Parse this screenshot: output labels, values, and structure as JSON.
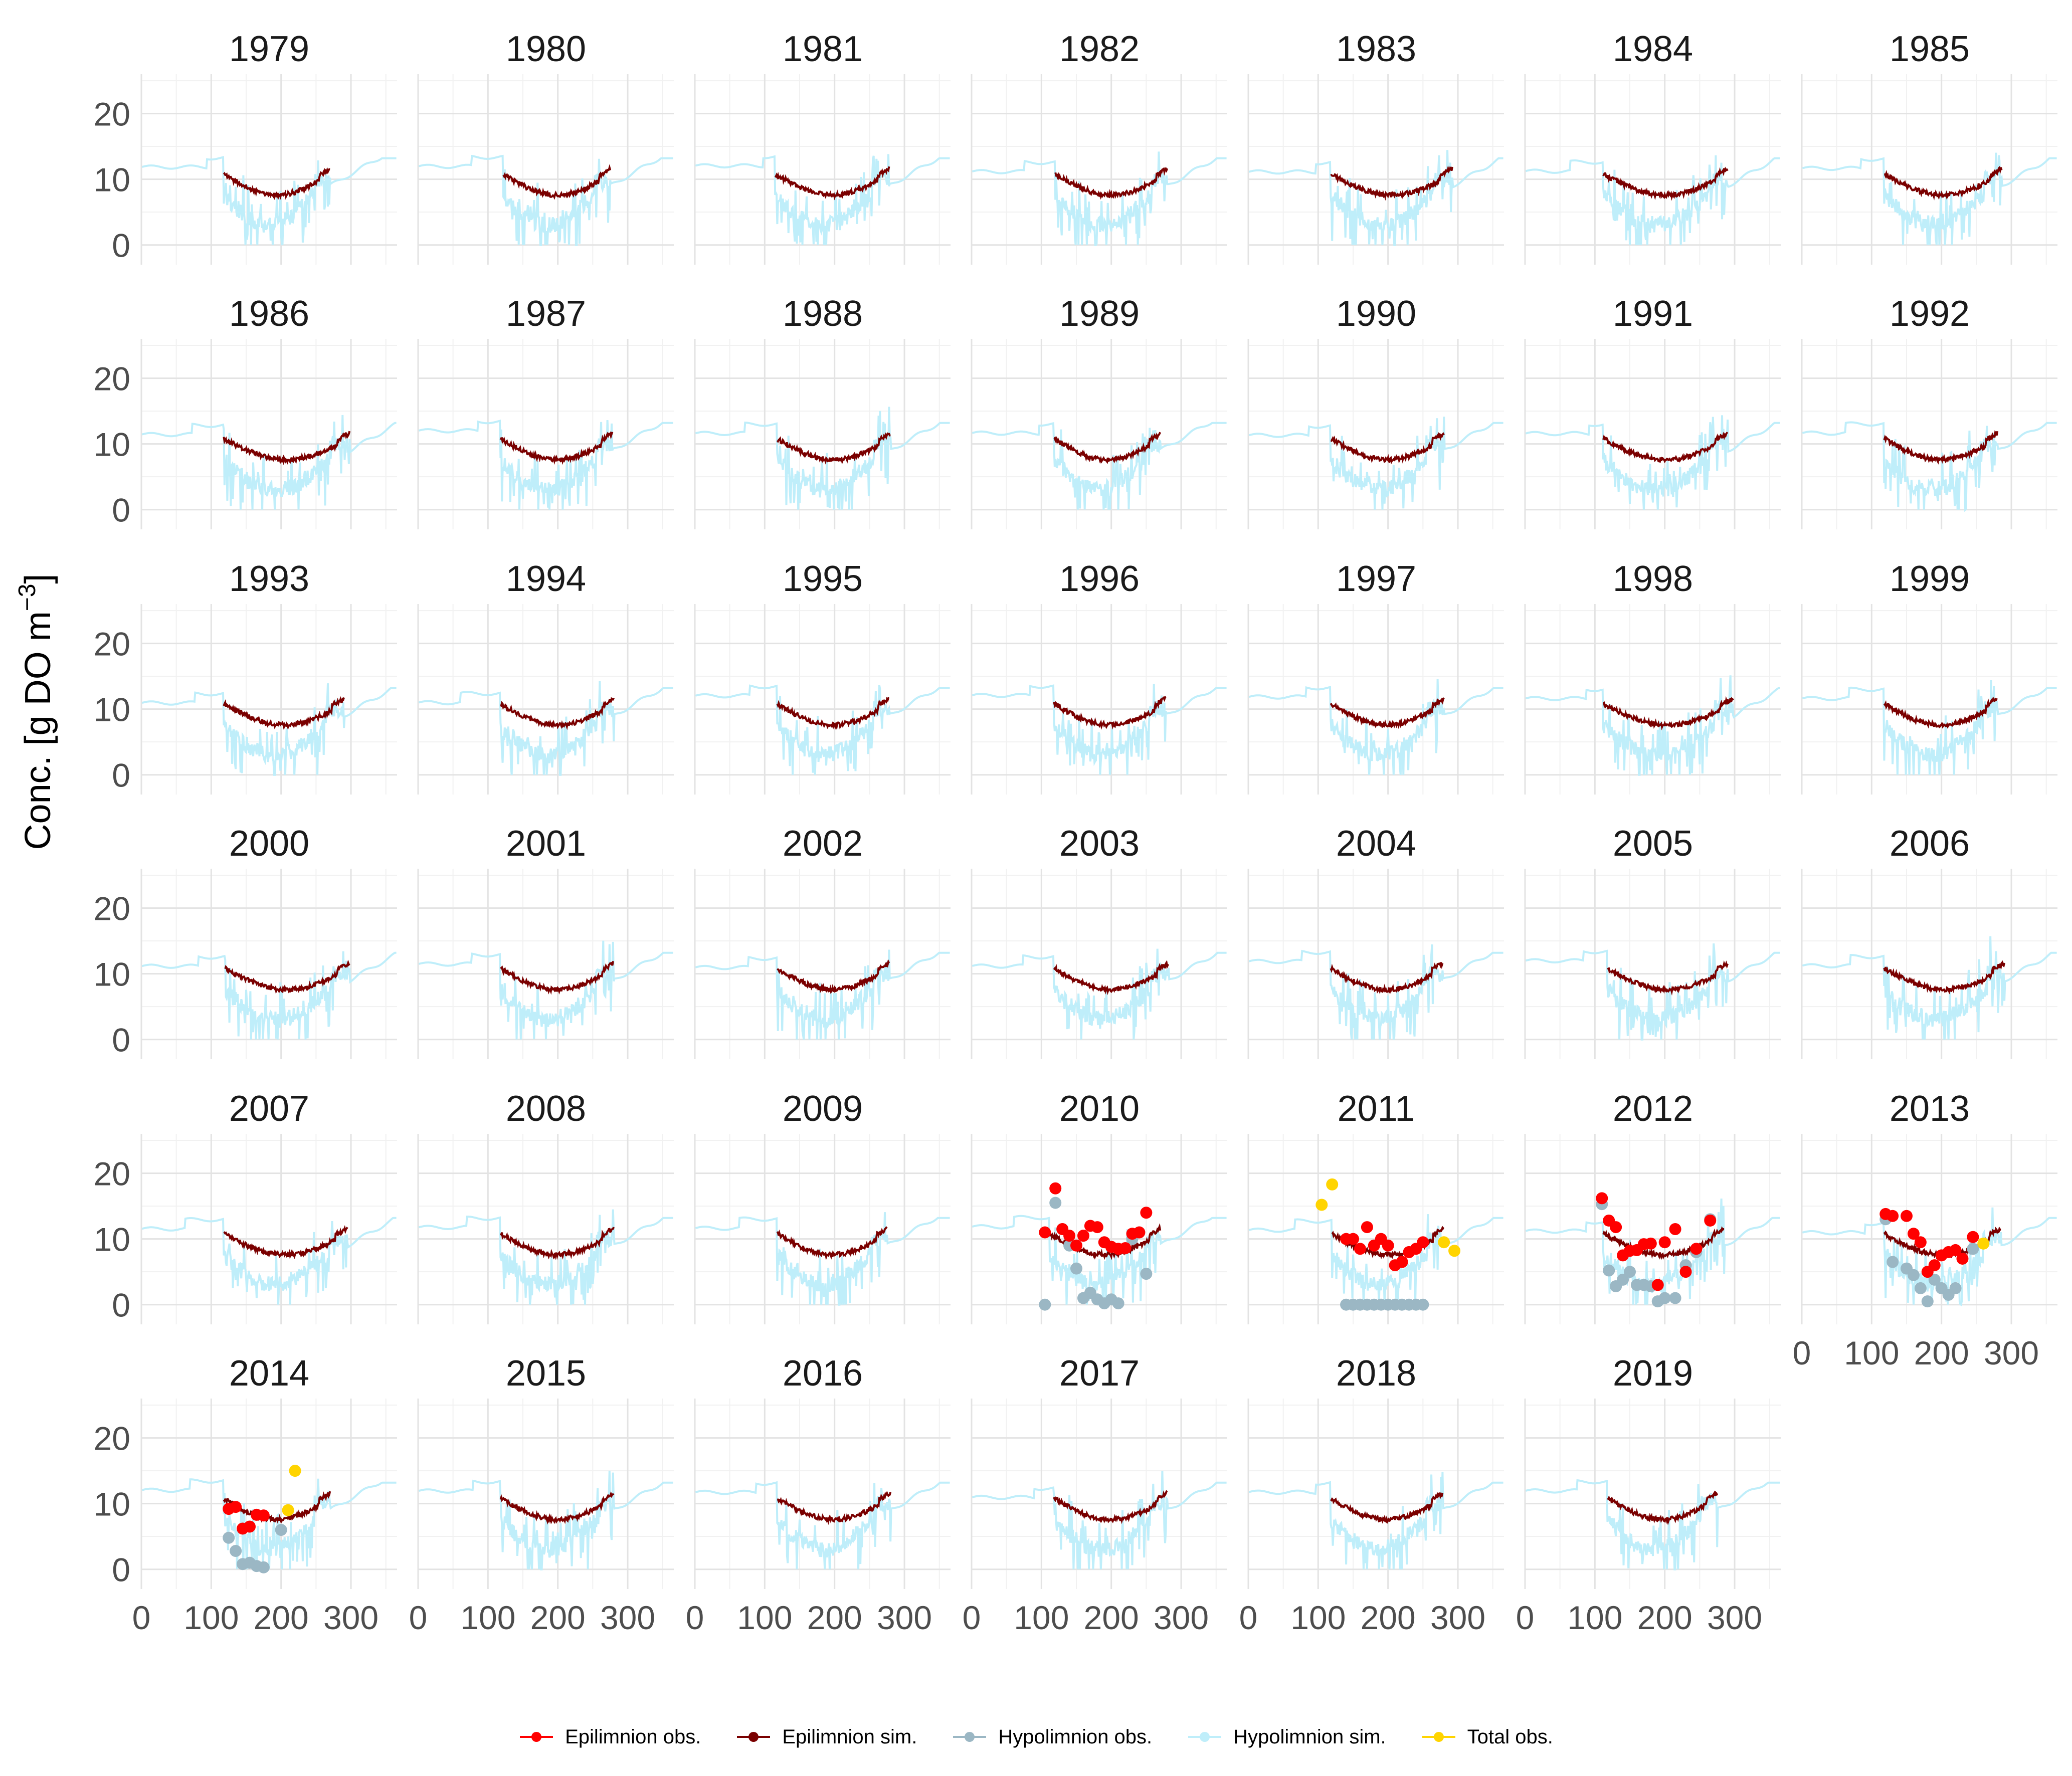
{
  "chart_data": {
    "type": "line",
    "layout": "facet-grid",
    "ylabel": "Conc. [g DO m",
    "ylabel_sup": "−3",
    "ylabel_end": "]",
    "xlabel": "",
    "xlim": [
      0,
      366
    ],
    "ylim": [
      -3,
      26
    ],
    "x_ticks": [
      0,
      100,
      200,
      300
    ],
    "x_tick_labels": [
      "0",
      "100",
      "200",
      "300"
    ],
    "y_ticks": [
      0,
      10,
      20
    ],
    "y_tick_labels": [
      "0",
      "10",
      "20"
    ],
    "grid": true,
    "legend_position": "bottom",
    "colors": {
      "epi_obs": "#ff0000",
      "epi_sim": "#7a0000",
      "hypo_obs": "#9bb7c4",
      "hypo_sim": "#bfeefa",
      "total_obs": "#ffd400"
    },
    "legend": [
      {
        "key": "epi_obs",
        "label": "Epilimnion obs.",
        "kind": "point"
      },
      {
        "key": "epi_sim",
        "label": "Epilimnion sim.",
        "kind": "line"
      },
      {
        "key": "hypo_obs",
        "label": "Hypolimnion obs.",
        "kind": "point"
      },
      {
        "key": "hypo_sim",
        "label": "Hypolimnion sim.",
        "kind": "line"
      },
      {
        "key": "total_obs",
        "label": "Total obs.",
        "kind": "point"
      }
    ],
    "panels": [
      {
        "year": "1979",
        "strat_start": 118,
        "strat_end": 270
      },
      {
        "year": "1980",
        "strat_start": 122,
        "strat_end": 275
      },
      {
        "year": "1981",
        "strat_start": 115,
        "strat_end": 278
      },
      {
        "year": "1982",
        "strat_start": 120,
        "strat_end": 280
      },
      {
        "year": "1983",
        "strat_start": 118,
        "strat_end": 292
      },
      {
        "year": "1984",
        "strat_start": 112,
        "strat_end": 290
      },
      {
        "year": "1985",
        "strat_start": 118,
        "strat_end": 286
      },
      {
        "year": "1986",
        "strat_start": 118,
        "strat_end": 298
      },
      {
        "year": "1987",
        "strat_start": 118,
        "strat_end": 278
      },
      {
        "year": "1988",
        "strat_start": 118,
        "strat_end": 280
      },
      {
        "year": "1989",
        "strat_start": 118,
        "strat_end": 270
      },
      {
        "year": "1990",
        "strat_start": 118,
        "strat_end": 280
      },
      {
        "year": "1991",
        "strat_start": 112,
        "strat_end": 290
      },
      {
        "year": "1992",
        "strat_start": 118,
        "strat_end": 280
      },
      {
        "year": "1993",
        "strat_start": 118,
        "strat_end": 290
      },
      {
        "year": "1994",
        "strat_start": 118,
        "strat_end": 280
      },
      {
        "year": "1995",
        "strat_start": 118,
        "strat_end": 278
      },
      {
        "year": "1996",
        "strat_start": 118,
        "strat_end": 278
      },
      {
        "year": "1997",
        "strat_start": 118,
        "strat_end": 280
      },
      {
        "year": "1998",
        "strat_start": 112,
        "strat_end": 298
      },
      {
        "year": "1999",
        "strat_start": 118,
        "strat_end": 280
      },
      {
        "year": "2000",
        "strat_start": 120,
        "strat_end": 298
      },
      {
        "year": "2001",
        "strat_start": 118,
        "strat_end": 280
      },
      {
        "year": "2002",
        "strat_start": 118,
        "strat_end": 278
      },
      {
        "year": "2003",
        "strat_start": 118,
        "strat_end": 282
      },
      {
        "year": "2004",
        "strat_start": 118,
        "strat_end": 278
      },
      {
        "year": "2005",
        "strat_start": 118,
        "strat_end": 290
      },
      {
        "year": "2006",
        "strat_start": 118,
        "strat_end": 290
      },
      {
        "year": "2007",
        "strat_start": 118,
        "strat_end": 295
      },
      {
        "year": "2008",
        "strat_start": 118,
        "strat_end": 280
      },
      {
        "year": "2009",
        "strat_start": 118,
        "strat_end": 275
      },
      {
        "year": "2010",
        "strat_start": 112,
        "strat_end": 270,
        "epi_obs": [
          [
            105,
            11
          ],
          [
            120,
            17.7
          ],
          [
            130,
            11.5
          ],
          [
            140,
            10.5
          ],
          [
            150,
            9
          ],
          [
            160,
            10.5
          ],
          [
            170,
            12
          ],
          [
            180,
            11.8
          ],
          [
            190,
            9.5
          ],
          [
            200,
            8.8
          ],
          [
            210,
            8.5
          ],
          [
            220,
            8.6
          ],
          [
            230,
            10.8
          ],
          [
            240,
            11
          ],
          [
            250,
            14
          ]
        ],
        "hypo_obs": [
          [
            105,
            0
          ],
          [
            120,
            15.5
          ],
          [
            130,
            11.5
          ],
          [
            140,
            9
          ],
          [
            150,
            5.5
          ],
          [
            160,
            1
          ],
          [
            170,
            1.8
          ],
          [
            180,
            0.8
          ],
          [
            190,
            0.2
          ],
          [
            200,
            0.8
          ],
          [
            210,
            0.2
          ],
          [
            230,
            10
          ],
          [
            240,
            11
          ],
          [
            250,
            4.7
          ]
        ]
      },
      {
        "year": "2011",
        "strat_start": 120,
        "strat_end": 280,
        "epi_obs": [
          [
            140,
            10
          ],
          [
            150,
            10
          ],
          [
            160,
            8.5
          ],
          [
            170,
            11.8
          ],
          [
            180,
            9
          ],
          [
            190,
            10
          ],
          [
            200,
            9
          ],
          [
            210,
            6
          ],
          [
            220,
            6.5
          ],
          [
            230,
            8
          ],
          [
            240,
            8.5
          ],
          [
            250,
            9.5
          ]
        ],
        "hypo_obs": [
          [
            140,
            0
          ],
          [
            150,
            0
          ],
          [
            160,
            0
          ],
          [
            170,
            0
          ],
          [
            180,
            0
          ],
          [
            190,
            0
          ],
          [
            200,
            0
          ],
          [
            210,
            0
          ],
          [
            220,
            0
          ],
          [
            230,
            0
          ],
          [
            240,
            0
          ],
          [
            250,
            0
          ]
        ],
        "total_obs": [
          [
            105,
            15.2
          ],
          [
            120,
            18.3
          ],
          [
            280,
            9.5
          ],
          [
            295,
            8.2
          ]
        ]
      },
      {
        "year": "2012",
        "strat_start": 112,
        "strat_end": 285,
        "epi_obs": [
          [
            110,
            16.2
          ],
          [
            120,
            12.8
          ],
          [
            130,
            11.8
          ],
          [
            140,
            7.5
          ],
          [
            150,
            8.2
          ],
          [
            160,
            8.3
          ],
          [
            170,
            9.2
          ],
          [
            180,
            9.3
          ],
          [
            190,
            3
          ],
          [
            200,
            9.5
          ],
          [
            215,
            11.5
          ],
          [
            230,
            5
          ],
          [
            245,
            8.5
          ],
          [
            265,
            12.8
          ]
        ],
        "hypo_obs": [
          [
            110,
            15.3
          ],
          [
            120,
            5.2
          ],
          [
            130,
            2.8
          ],
          [
            140,
            3.8
          ],
          [
            150,
            5
          ],
          [
            160,
            3
          ],
          [
            170,
            3
          ],
          [
            180,
            2.8
          ],
          [
            190,
            0.5
          ],
          [
            200,
            1
          ],
          [
            215,
            1
          ],
          [
            230,
            6
          ],
          [
            245,
            8
          ],
          [
            265,
            13
          ]
        ]
      },
      {
        "year": "2013",
        "strat_start": 118,
        "strat_end": 285,
        "epi_obs": [
          [
            120,
            13.8
          ],
          [
            130,
            13.5
          ],
          [
            150,
            13.5
          ],
          [
            160,
            10.8
          ],
          [
            170,
            9.5
          ],
          [
            180,
            5
          ],
          [
            190,
            6
          ],
          [
            200,
            7.5
          ],
          [
            210,
            8
          ],
          [
            220,
            8.3
          ],
          [
            230,
            7
          ],
          [
            245,
            10.3
          ]
        ],
        "hypo_obs": [
          [
            120,
            13
          ],
          [
            130,
            6.5
          ],
          [
            150,
            5.5
          ],
          [
            160,
            4.5
          ],
          [
            170,
            2.5
          ],
          [
            180,
            0.5
          ],
          [
            190,
            3.8
          ],
          [
            200,
            2.5
          ],
          [
            210,
            1.5
          ],
          [
            220,
            2.5
          ],
          [
            245,
            8.5
          ]
        ],
        "total_obs": [
          [
            260,
            9.3
          ]
        ]
      },
      {
        "year": "2014",
        "strat_start": 118,
        "strat_end": 270,
        "epi_obs": [
          [
            125,
            9.2
          ],
          [
            135,
            9.5
          ],
          [
            145,
            6.2
          ],
          [
            155,
            6.5
          ],
          [
            165,
            8.3
          ],
          [
            175,
            8.2
          ]
        ],
        "hypo_obs": [
          [
            125,
            4.8
          ],
          [
            135,
            2.8
          ],
          [
            145,
            0.8
          ],
          [
            155,
            1
          ],
          [
            165,
            0.5
          ],
          [
            175,
            0.3
          ],
          [
            200,
            6
          ]
        ],
        "total_obs": [
          [
            210,
            9
          ],
          [
            220,
            15
          ]
        ]
      },
      {
        "year": "2015",
        "strat_start": 118,
        "strat_end": 280
      },
      {
        "year": "2016",
        "strat_start": 118,
        "strat_end": 280
      },
      {
        "year": "2017",
        "strat_start": 118,
        "strat_end": 280
      },
      {
        "year": "2018",
        "strat_start": 118,
        "strat_end": 278
      },
      {
        "year": "2019",
        "strat_start": 118,
        "strat_end": 275
      }
    ]
  }
}
